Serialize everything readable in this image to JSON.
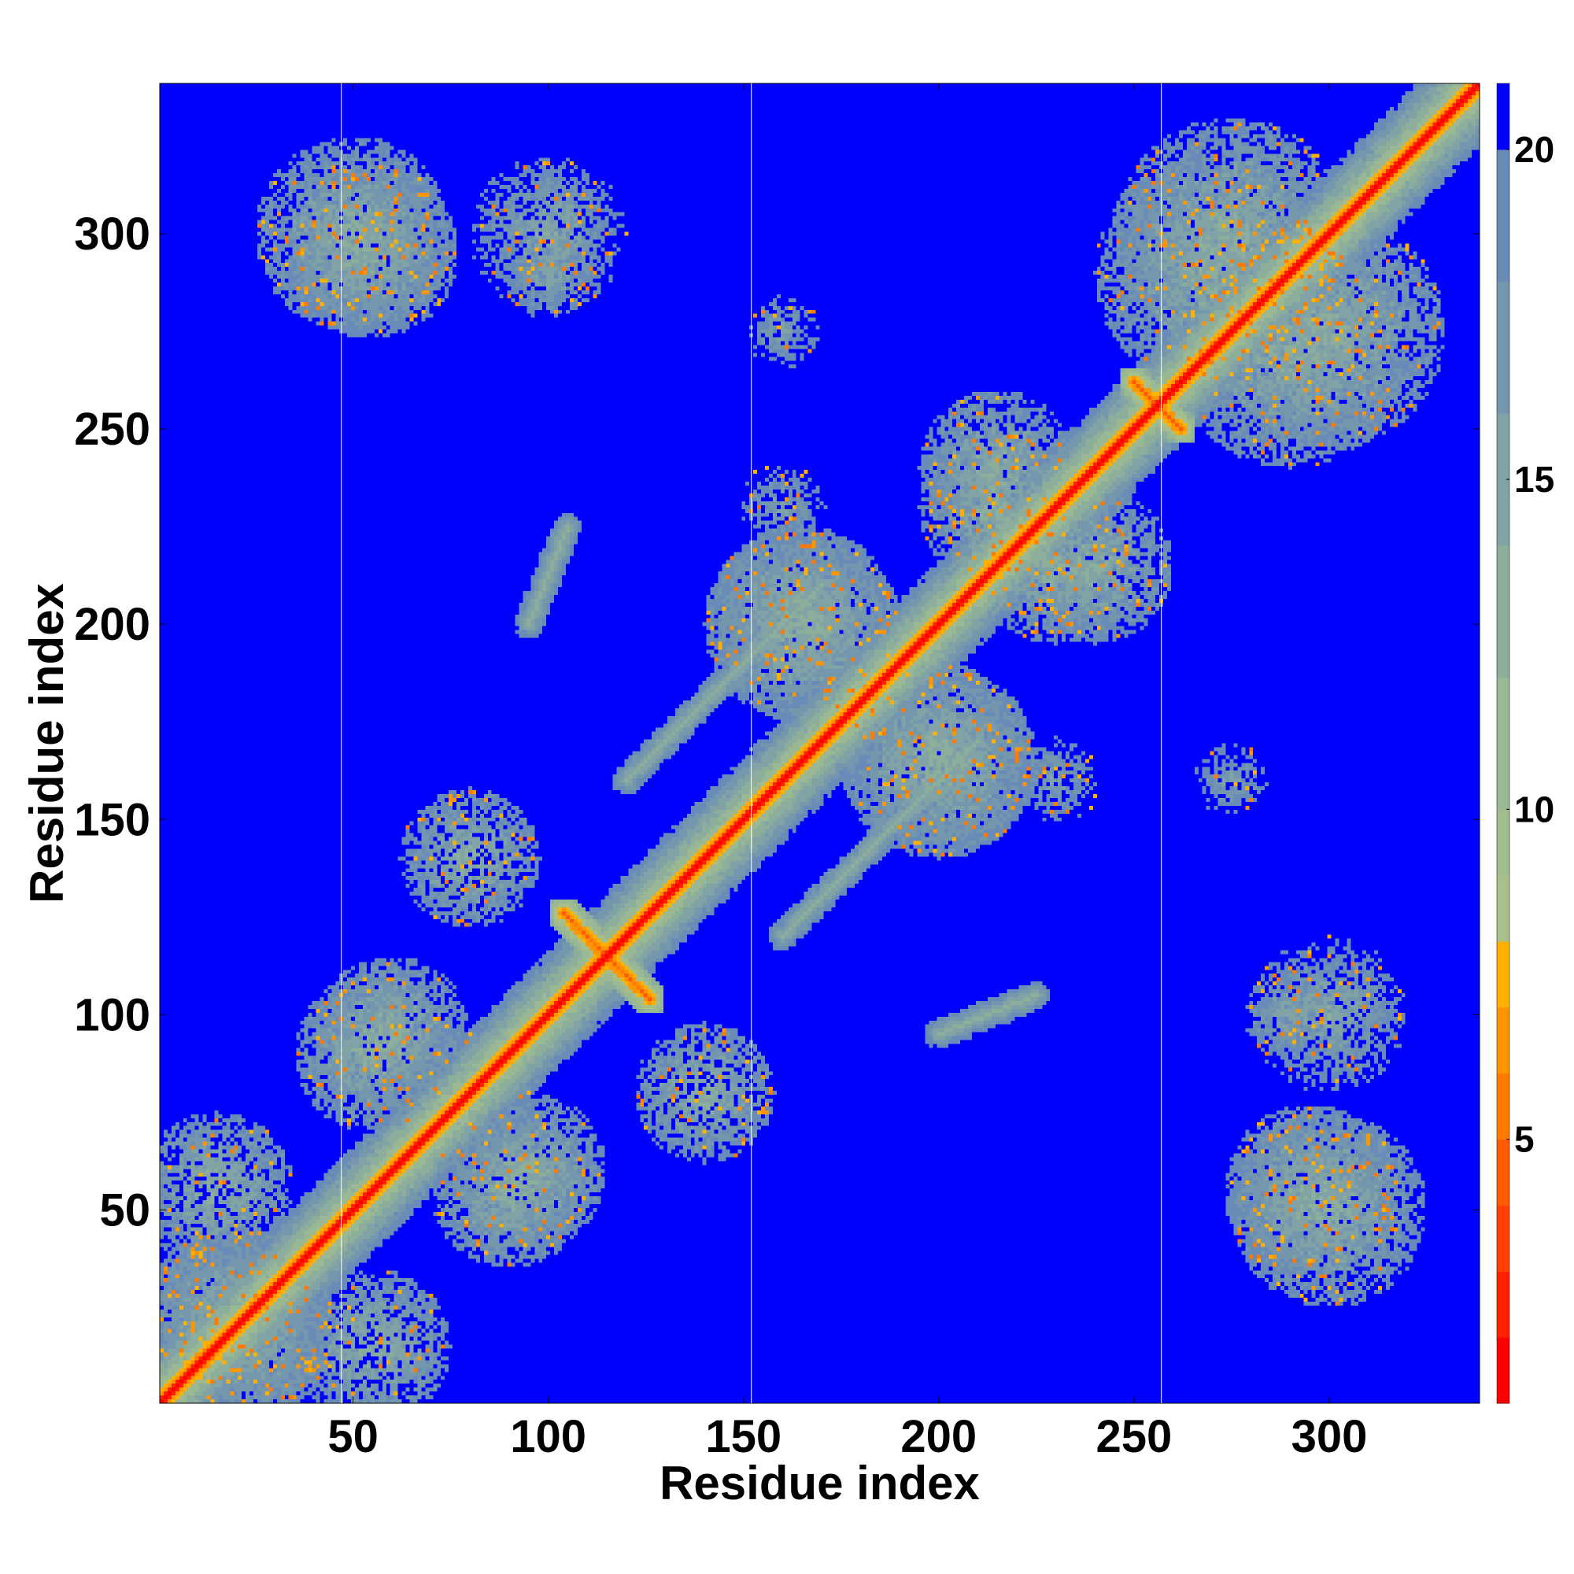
{
  "chart_data": {
    "type": "heatmap",
    "title": "",
    "xlabel": "Residue index",
    "ylabel": "Residue index",
    "x_range": [
      1,
      338
    ],
    "y_range": [
      1,
      338
    ],
    "x_ticks": [
      50,
      100,
      150,
      200,
      250,
      300
    ],
    "y_ticks": [
      50,
      100,
      150,
      200,
      250,
      300
    ],
    "color_range": [
      1,
      21
    ],
    "colorbar_ticks": [
      5,
      10,
      15,
      20
    ],
    "colormap": [
      {
        "from": 1,
        "to": 2,
        "color": "#ff0000"
      },
      {
        "from": 2,
        "to": 3,
        "color": "#ff2200"
      },
      {
        "from": 3,
        "to": 4,
        "color": "#ff4000"
      },
      {
        "from": 4,
        "to": 5,
        "color": "#ff5a00"
      },
      {
        "from": 5,
        "to": 6,
        "color": "#ff7a00"
      },
      {
        "from": 6,
        "to": 7,
        "color": "#ff9500"
      },
      {
        "from": 7,
        "to": 8,
        "color": "#ffb000"
      },
      {
        "from": 8,
        "to": 9,
        "color": "#a8c08a"
      },
      {
        "from": 9,
        "to": 10,
        "color": "#a3bd8c"
      },
      {
        "from": 10,
        "to": 12,
        "color": "#9ab894"
      },
      {
        "from": 12,
        "to": 14,
        "color": "#8eae9c"
      },
      {
        "from": 14,
        "to": 16,
        "color": "#82a3a6"
      },
      {
        "from": 16,
        "to": 18,
        "color": "#7597ae"
      },
      {
        "from": 18,
        "to": 20,
        "color": "#688bb7"
      },
      {
        "from": 20,
        "to": 21,
        "color": "#0000ff"
      }
    ],
    "background_value": 21,
    "diagonal_value": 1,
    "domain_boundaries_x": [
      47,
      152,
      257
    ],
    "contact_features": [
      {
        "kind": "diagonal_band",
        "from": 1,
        "to": 338,
        "width": 8
      },
      {
        "kind": "antiparallel",
        "from": [
          104,
          126
        ],
        "to": [
          126,
          104
        ],
        "value": 4
      },
      {
        "kind": "antiparallel",
        "from": [
          250,
          262
        ],
        "to": [
          262,
          250
        ],
        "value": 4
      },
      {
        "kind": "parallel_strand",
        "from": [
          95,
          200
        ],
        "to": [
          105,
          225
        ],
        "value": 12
      },
      {
        "kind": "parallel_strand",
        "from": [
          120,
          160
        ],
        "to": [
          170,
          210
        ],
        "value": 12
      },
      {
        "kind": "cluster",
        "center": [
          55,
          295
        ],
        "size": 22,
        "value": 12
      },
      {
        "kind": "cluster",
        "center": [
          100,
          290
        ],
        "size": 12,
        "value": 13
      },
      {
        "kind": "cluster",
        "center": [
          60,
          95
        ],
        "size": 20,
        "value": 12
      },
      {
        "kind": "cluster",
        "center": [
          90,
          55
        ],
        "size": 20,
        "value": 12
      },
      {
        "kind": "cluster",
        "center": [
          140,
          80
        ],
        "size": 18,
        "value": 12
      },
      {
        "kind": "cluster",
        "center": [
          165,
          200
        ],
        "size": 25,
        "value": 12
      },
      {
        "kind": "cluster",
        "center": [
          200,
          165
        ],
        "size": 25,
        "value": 12
      },
      {
        "kind": "cluster",
        "center": [
          215,
          230
        ],
        "size": 20,
        "value": 12
      },
      {
        "kind": "cluster",
        "center": [
          240,
          215
        ],
        "size": 20,
        "value": 12
      },
      {
        "kind": "cluster",
        "center": [
          290,
          270
        ],
        "size": 30,
        "value": 12
      },
      {
        "kind": "cluster",
        "center": [
          275,
          300
        ],
        "size": 30,
        "value": 12
      },
      {
        "kind": "cluster",
        "center": [
          300,
          50
        ],
        "size": 25,
        "value": 12
      },
      {
        "kind": "cluster",
        "center": [
          300,
          100
        ],
        "size": 20,
        "value": 13
      },
      {
        "kind": "cluster",
        "center": [
          275,
          160
        ],
        "size": 10,
        "value": 14
      },
      {
        "kind": "cluster",
        "center": [
          230,
          160
        ],
        "size": 12,
        "value": 14
      },
      {
        "kind": "cluster",
        "center": [
          20,
          20
        ],
        "size": 25,
        "value": 12
      },
      {
        "kind": "cluster",
        "center": [
          55,
          15
        ],
        "size": 20,
        "value": 12
      }
    ]
  }
}
